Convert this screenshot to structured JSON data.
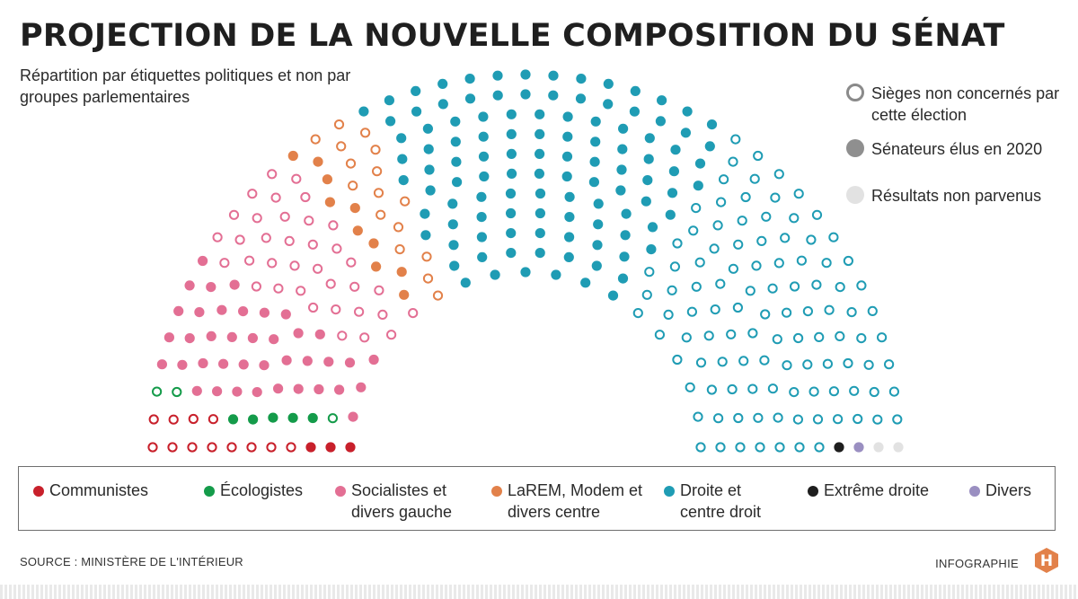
{
  "chart_data": {
    "type": "hemicycle",
    "title": "PROJECTION DE LA NOUVELLE COMPOSITION DU SÉNAT",
    "subtitle": "Répartition par étiquettes politiques et non par groupes parlementaires",
    "status_key": [
      {
        "id": "open",
        "label": "Sièges non concernés par cette élection"
      },
      {
        "id": "filled",
        "label": "Sénateurs élus en 2020"
      },
      {
        "id": "pending",
        "label": "Résultats non parvenus"
      }
    ],
    "series": [
      {
        "name": "Communistes",
        "color": "#c8202b",
        "seats": 15,
        "elected_2020": 3,
        "not_concerned": 12,
        "pending": 0
      },
      {
        "name": "Écologistes",
        "color": "#149b4a",
        "seats": 8,
        "elected_2020": 5,
        "not_concerned": 3,
        "pending": 0
      },
      {
        "name": "Socialistes et divers gauche",
        "color": "#e36f94",
        "seats": 75,
        "elected_2020": 39,
        "not_concerned": 36,
        "pending": 0
      },
      {
        "name": "LaREM, Modem et divers centre",
        "color": "#e2814a",
        "seats": 26,
        "elected_2020": 10,
        "not_concerned": 16,
        "pending": 0
      },
      {
        "name": "Droite et centre droit",
        "color": "#1f9cb4",
        "seats": 215,
        "elected_2020": 110,
        "not_concerned": 105,
        "pending": 0
      },
      {
        "name": "Extrême droite",
        "color": "#1e1e1e",
        "seats": 1,
        "elected_2020": 1,
        "not_concerned": 0,
        "pending": 0
      },
      {
        "name": "Divers",
        "color": "#9a8fc1",
        "seats": 1,
        "elected_2020": 1,
        "not_concerned": 0,
        "pending": 0
      },
      {
        "name": "Résultats non parvenus",
        "color": "#e2e2e2",
        "seats": 2,
        "elected_2020": 0,
        "not_concerned": 0,
        "pending": 2
      }
    ],
    "total_seats": 343
  },
  "legend": [
    {
      "label": "Communistes",
      "color": "#c8202b"
    },
    {
      "label": "Écologistes",
      "color": "#149b4a"
    },
    {
      "label": "Socialistes et divers gauche",
      "color": "#e36f94"
    },
    {
      "label": "LaREM, Modem et divers centre",
      "color": "#e2814a"
    },
    {
      "label": "Droite et centre droit",
      "color": "#1f9cb4"
    },
    {
      "label": "Extrême droite",
      "color": "#1e1e1e"
    },
    {
      "label": "Divers",
      "color": "#9a8fc1"
    }
  ],
  "footer": {
    "source": "SOURCE : MINISTÈRE DE L'INTÉRIEUR",
    "credit": "INFOGRAPHIE",
    "logo_letter": "H"
  }
}
